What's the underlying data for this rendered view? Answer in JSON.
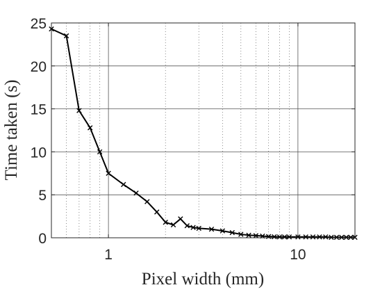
{
  "chart_data": {
    "type": "line",
    "xlabel": "Pixel width (mm)",
    "ylabel": "Time taken (s)",
    "xscale": "log",
    "xlim": [
      0.5,
      20
    ],
    "ylim": [
      0,
      25
    ],
    "x_ticks": [
      1,
      10
    ],
    "x_tick_labels": [
      "1",
      "10"
    ],
    "y_ticks": [
      0,
      5,
      10,
      15,
      20,
      25
    ],
    "y_tick_labels": [
      "0",
      "5",
      "10",
      "15",
      "20",
      "25"
    ],
    "grid": true,
    "marker": "x",
    "line_color": "#000000",
    "series": [
      {
        "x": [
          0.5,
          0.6,
          0.7,
          0.8,
          0.9,
          1.0,
          1.2,
          1.4,
          1.6,
          1.8,
          2.0,
          2.2,
          2.4,
          2.6,
          2.8,
          3.0,
          3.5,
          4.0,
          4.5,
          5.0,
          5.5,
          6.0,
          6.5,
          7.0,
          7.5,
          8.0,
          8.5,
          9.0,
          10,
          11,
          12,
          13,
          14,
          15,
          16,
          17,
          18,
          19,
          20
        ],
        "y": [
          24.3,
          23.5,
          14.8,
          12.8,
          10.0,
          7.5,
          6.2,
          5.2,
          4.2,
          3.0,
          1.8,
          1.5,
          2.2,
          1.4,
          1.2,
          1.1,
          1.0,
          0.8,
          0.6,
          0.4,
          0.3,
          0.25,
          0.2,
          0.15,
          0.12,
          0.1,
          0.1,
          0.1,
          0.1,
          0.1,
          0.1,
          0.1,
          0.1,
          0.05,
          0.05,
          0.05,
          0.05,
          0.05,
          0.05
        ]
      }
    ]
  }
}
